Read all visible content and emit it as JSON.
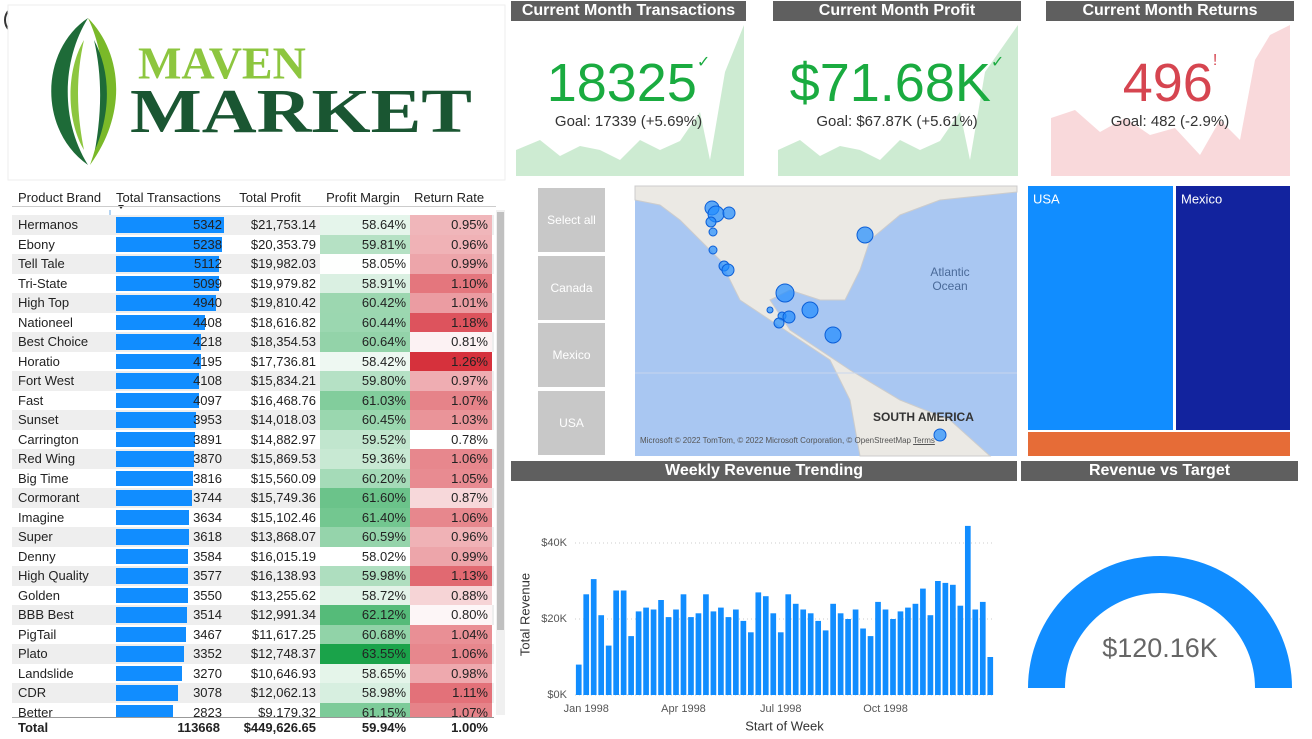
{
  "logo": {
    "line1": "MAVEN",
    "line2": "MARKET"
  },
  "kpis": [
    {
      "title": "Current Month Transactions",
      "value": "18325",
      "status": "✓",
      "goal": "Goal: 17339 (+5.69%)"
    },
    {
      "title": "Current Month Profit",
      "value": "$71.68K",
      "status": "✓",
      "goal": "Goal: $67.87K (+5.61%)"
    },
    {
      "title": "Current Month Returns",
      "value": "496",
      "status": "!",
      "goal": "Goal: 482 (-2.9%)"
    }
  ],
  "table": {
    "columns": [
      "Product Brand",
      "Total Transactions",
      "Total Profit",
      "Profit Margin",
      "Return Rate"
    ],
    "rows": [
      [
        "Hermanos",
        5342,
        "$21,753.14",
        "58.64%",
        "0.95%"
      ],
      [
        "Ebony",
        5238,
        "$20,353.79",
        "59.81%",
        "0.96%"
      ],
      [
        "Tell Tale",
        5112,
        "$19,982.03",
        "58.05%",
        "0.99%"
      ],
      [
        "Tri-State",
        5099,
        "$19,979.82",
        "58.91%",
        "1.10%"
      ],
      [
        "High Top",
        4940,
        "$19,810.42",
        "60.42%",
        "1.01%"
      ],
      [
        "Nationeel",
        4408,
        "$18,616.82",
        "60.44%",
        "1.18%"
      ],
      [
        "Best Choice",
        4218,
        "$18,354.53",
        "60.64%",
        "0.81%"
      ],
      [
        "Horatio",
        4195,
        "$17,736.81",
        "58.42%",
        "1.26%"
      ],
      [
        "Fort West",
        4108,
        "$15,834.21",
        "59.80%",
        "0.97%"
      ],
      [
        "Fast",
        4097,
        "$16,468.76",
        "61.03%",
        "1.07%"
      ],
      [
        "Sunset",
        3953,
        "$14,018.03",
        "60.45%",
        "1.03%"
      ],
      [
        "Carrington",
        3891,
        "$14,882.97",
        "59.52%",
        "0.78%"
      ],
      [
        "Red Wing",
        3870,
        "$15,869.53",
        "59.36%",
        "1.06%"
      ],
      [
        "Big Time",
        3816,
        "$15,560.09",
        "60.20%",
        "1.05%"
      ],
      [
        "Cormorant",
        3744,
        "$15,749.36",
        "61.60%",
        "0.87%"
      ],
      [
        "Imagine",
        3634,
        "$15,102.46",
        "61.40%",
        "1.06%"
      ],
      [
        "Super",
        3618,
        "$13,868.07",
        "60.59%",
        "0.96%"
      ],
      [
        "Denny",
        3584,
        "$16,015.19",
        "58.02%",
        "0.99%"
      ],
      [
        "High Quality",
        3577,
        "$16,138.93",
        "59.98%",
        "1.13%"
      ],
      [
        "Golden",
        3550,
        "$13,255.62",
        "58.72%",
        "0.88%"
      ],
      [
        "BBB Best",
        3514,
        "$12,991.34",
        "62.12%",
        "0.80%"
      ],
      [
        "PigTail",
        3467,
        "$11,617.25",
        "60.68%",
        "1.04%"
      ],
      [
        "Plato",
        3352,
        "$12,748.37",
        "63.55%",
        "1.06%"
      ],
      [
        "Landslide",
        3270,
        "$10,646.93",
        "58.65%",
        "0.98%"
      ],
      [
        "CDR",
        3078,
        "$12,062.13",
        "58.98%",
        "1.11%"
      ],
      [
        "Better",
        2823,
        "$9,179.32",
        "61.15%",
        "1.07%"
      ]
    ],
    "total": [
      "Total",
      "113668",
      "$449,626.65",
      "59.94%",
      "1.00%"
    ]
  },
  "slicer": [
    "Select all",
    "Canada",
    "Mexico",
    "USA"
  ],
  "map": {
    "ocean": "Atlantic Ocean",
    "continent": "SOUTH AMERICA",
    "brand": "Microsoft",
    "attribution": "© 2022 TomTom, © 2022 Microsoft Corporation, © OpenStreetMap",
    "terms": "Terms"
  },
  "treemap": [
    "USA",
    "Mexico"
  ],
  "chart_data": {
    "type": "bar",
    "title": "Weekly Revenue Trending",
    "ylabel": "Total Revenue",
    "xlabel": "Start of Week",
    "color": "#118dff",
    "categories": [
      null,
      "Jan 1998",
      null,
      null,
      null,
      null,
      null,
      null,
      null,
      null,
      null,
      null,
      null,
      null,
      "Apr 1998",
      null,
      null,
      null,
      null,
      null,
      null,
      null,
      null,
      null,
      null,
      null,
      null,
      "Jul 1998",
      null,
      null,
      null,
      null,
      null,
      null,
      null,
      null,
      null,
      null,
      null,
      null,
      null,
      "Oct 1998",
      null,
      null,
      null,
      null,
      null,
      null,
      null,
      null,
      null,
      null,
      null,
      null,
      null,
      null
    ],
    "values": [
      8000,
      26500,
      30500,
      21000,
      13000,
      27500,
      27500,
      15500,
      22000,
      23000,
      22500,
      25000,
      20500,
      22500,
      26500,
      20500,
      21500,
      26500,
      22000,
      23000,
      20500,
      22500,
      19500,
      16500,
      27000,
      26000,
      21500,
      16500,
      26500,
      24000,
      22500,
      21500,
      19500,
      17000,
      24000,
      21500,
      20000,
      22500,
      17500,
      15500,
      24500,
      22500,
      20000,
      22000,
      23000,
      24000,
      28000,
      21000,
      30000,
      29500,
      29000,
      23500,
      44500,
      22500,
      24500,
      10000
    ],
    "ylim": [
      0,
      45000
    ],
    "yticks": [
      {
        "value": 0,
        "label": "$0K"
      },
      {
        "value": 20000,
        "label": "$20K"
      },
      {
        "value": 40000,
        "label": "$40K"
      }
    ],
    "grid": true
  },
  "gauge": {
    "title": "Revenue vs Target",
    "value": 120160,
    "value_label": "$120.16K"
  }
}
